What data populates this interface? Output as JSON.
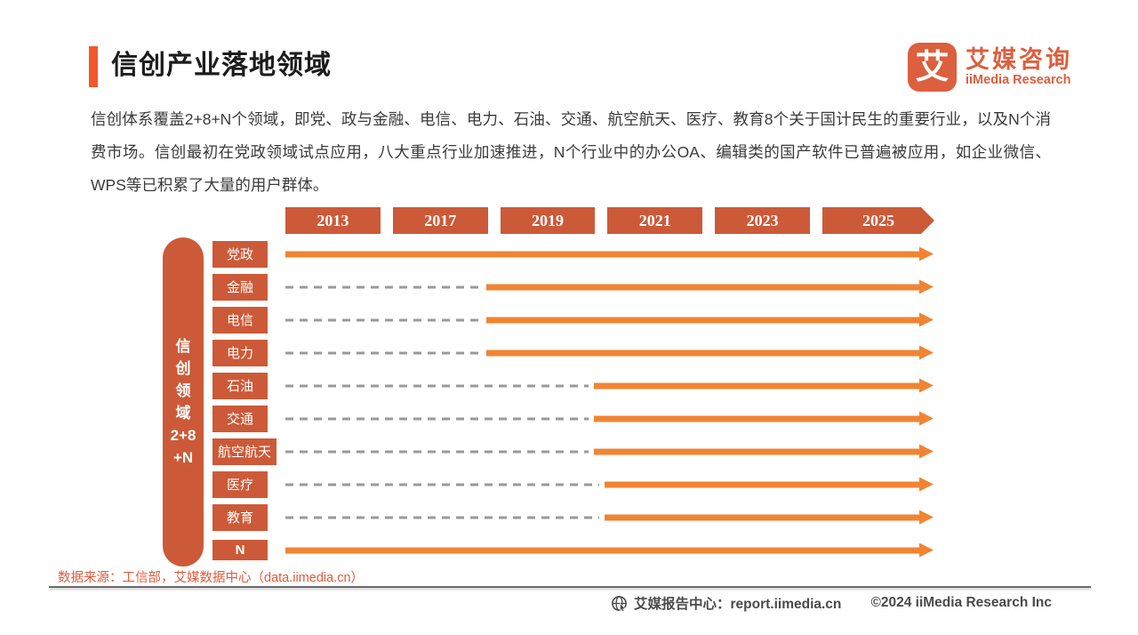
{
  "header": {
    "title": "信创产业落地领域"
  },
  "logo": {
    "mark": "艾",
    "name_cn": "艾媒咨询",
    "name_en": "iiMedia Research"
  },
  "intro": {
    "paragraph": "信创体系覆盖2+8+N个领域，即党、政与金融、电信、电力、石油、交通、航空航天、医疗、教育8个关于国计民生的重要行业，以及N个消费市场。信创最初在党政领域试点应用，八大重点行业加速推进，N个行业中的办公OA、编辑类的国产软件已普遍被应用，如企业微信、WPS等已积累了大量的用户群体。"
  },
  "chart_data": {
    "type": "bar",
    "subtype": "horizontal-gantt-timeline",
    "title": "信创产业落地领域",
    "x_tick_years": [
      "2013",
      "2017",
      "2019",
      "2021",
      "2023",
      "2025"
    ],
    "x_note": "年份箭头条，所有行业箭头延伸超过2025（持续推进）",
    "y_axis_label": "信创领域2+8+N",
    "y_axis_label_lines": [
      "信",
      "创",
      "领",
      "域",
      "2+8",
      "+N"
    ],
    "categories": [
      "党政",
      "金融",
      "电信",
      "电力",
      "石油",
      "交通",
      "航空航天",
      "医疗",
      "教育",
      "N"
    ],
    "rows": [
      {
        "label": "党政",
        "start_year": "2013",
        "ongoing": true,
        "dashed_lead": false,
        "start_pct": 0
      },
      {
        "label": "金融",
        "start_year": "2019",
        "ongoing": true,
        "dashed_lead": true,
        "start_pct": 31
      },
      {
        "label": "电信",
        "start_year": "2019",
        "ongoing": true,
        "dashed_lead": true,
        "start_pct": 31
      },
      {
        "label": "电力",
        "start_year": "2019",
        "ongoing": true,
        "dashed_lead": true,
        "start_pct": 31
      },
      {
        "label": "石油",
        "start_year": "2021",
        "ongoing": true,
        "dashed_lead": true,
        "start_pct": 47.5
      },
      {
        "label": "交通",
        "start_year": "2021",
        "ongoing": true,
        "dashed_lead": true,
        "start_pct": 47.5
      },
      {
        "label": "航空航天",
        "start_year": "2021",
        "ongoing": true,
        "dashed_lead": true,
        "start_pct": 47.5
      },
      {
        "label": "医疗",
        "start_year": "2021",
        "ongoing": true,
        "dashed_lead": true,
        "start_pct": 49.2
      },
      {
        "label": "教育",
        "start_year": "2021",
        "ongoing": true,
        "dashed_lead": true,
        "start_pct": 49.2
      },
      {
        "label": "N",
        "start_year": "2013",
        "ongoing": true,
        "dashed_lead": false,
        "start_pct": 0
      }
    ],
    "legend": null,
    "grid": false
  },
  "colors": {
    "accent": "#F4572B",
    "box": "#CC5A38",
    "arrow": "#F08433",
    "dash": "#9A9A9A",
    "logo": "#DC5F3E",
    "source_text": "#E05B3C",
    "footer_text": "#4A4A4A"
  },
  "source": {
    "text": "数据来源：工信部，艾媒数据中心（data.iimedia.cn）"
  },
  "footer": {
    "report_center": "艾媒报告中心：report.iimedia.cn",
    "copyright": "©2024  iiMedia Research Inc"
  }
}
